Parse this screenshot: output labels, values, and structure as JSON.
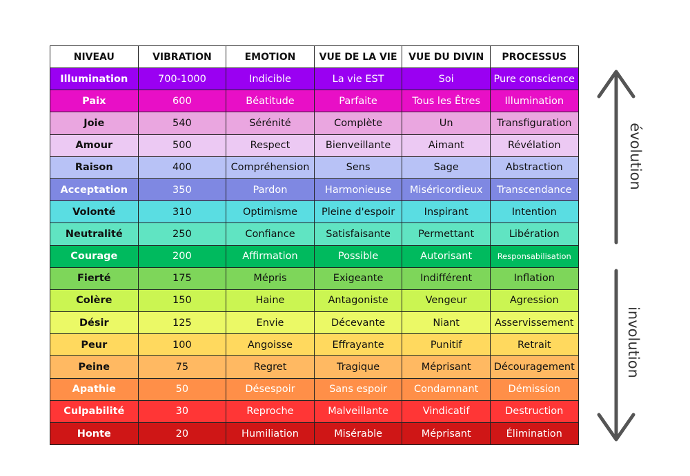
{
  "headers": [
    "NIVEAU",
    "VIBRATION",
    "EMOTION",
    "VUE DE LA VIE",
    "VUE DU DIVIN",
    "PROCESSUS"
  ],
  "rows": [
    {
      "cells": [
        "Illumination",
        "700-1000",
        "Indicible",
        "La vie EST",
        "Soi",
        "Pure conscience"
      ],
      "bg": "#9a00f2",
      "fg": "#ffffff"
    },
    {
      "cells": [
        "Paix",
        "600",
        "Béatitude",
        "Parfaite",
        "Tous les Êtres",
        "Illumination"
      ],
      "bg": "#e80fc6",
      "fg": "#ffffff"
    },
    {
      "cells": [
        "Joie",
        "540",
        "Sérénité",
        "Complète",
        "Un",
        "Transfiguration"
      ],
      "bg": "#eaa6e0",
      "fg": "#111111"
    },
    {
      "cells": [
        "Amour",
        "500",
        "Respect",
        "Bienveillante",
        "Aimant",
        "Révélation"
      ],
      "bg": "#ecc9f3",
      "fg": "#111111"
    },
    {
      "cells": [
        "Raison",
        "400",
        "Compréhension",
        "Sens",
        "Sage",
        "Abstraction"
      ],
      "bg": "#b8c2f6",
      "fg": "#111111"
    },
    {
      "cells": [
        "Acceptation",
        "350",
        "Pardon",
        "Harmonieuse",
        "Miséricordieux",
        "Transcendance"
      ],
      "bg": "#7f88e2",
      "fg": "#ffffff"
    },
    {
      "cells": [
        "Volonté",
        "310",
        "Optimisme",
        "Pleine d'espoir",
        "Inspirant",
        "Intention"
      ],
      "bg": "#5adde2",
      "fg": "#111111"
    },
    {
      "cells": [
        "Neutralité",
        "250",
        "Confiance",
        "Satisfaisante",
        "Permettant",
        "Libération"
      ],
      "bg": "#60e4c2",
      "fg": "#111111"
    },
    {
      "cells": [
        "Courage",
        "200",
        "Affirmation",
        "Possible",
        "Autorisant",
        "Responsabilisation"
      ],
      "bg": "#00ba5e",
      "fg": "#ffffff"
    },
    {
      "cells": [
        "Fierté",
        "175",
        "Mépris",
        "Exigeante",
        "Indifférent",
        "Inflation"
      ],
      "bg": "#7ed65a",
      "fg": "#111111"
    },
    {
      "cells": [
        "Colère",
        "150",
        "Haine",
        "Antagoniste",
        "Vengeur",
        "Agression"
      ],
      "bg": "#cbf552",
      "fg": "#111111"
    },
    {
      "cells": [
        "Désir",
        "125",
        "Envie",
        "Décevante",
        "Niant",
        "Asservissement"
      ],
      "bg": "#ebf966",
      "fg": "#111111"
    },
    {
      "cells": [
        "Peur",
        "100",
        "Angoisse",
        "Effrayante",
        "Punitif",
        "Retrait"
      ],
      "bg": "#ffd95e",
      "fg": "#111111"
    },
    {
      "cells": [
        "Peine",
        "75",
        "Regret",
        "Tragique",
        "Méprisant",
        "Découragement"
      ],
      "bg": "#ffb962",
      "fg": "#111111"
    },
    {
      "cells": [
        "Apathie",
        "50",
        "Désespoir",
        "Sans espoir",
        "Condamnant",
        "Démission"
      ],
      "bg": "#ff8f48",
      "fg": "#ffffff"
    },
    {
      "cells": [
        "Culpabilité",
        "30",
        "Reproche",
        "Malveillante",
        "Vindicatif",
        "Destruction"
      ],
      "bg": "#ff3636",
      "fg": "#ffffff"
    },
    {
      "cells": [
        "Honte",
        "20",
        "Humiliation",
        "Misérable",
        "Méprisant",
        "Élimination"
      ],
      "bg": "#cf1616",
      "fg": "#ffffff"
    }
  ],
  "arrows": {
    "up_label": "évolution",
    "down_label": "involution",
    "color": "#555555"
  }
}
